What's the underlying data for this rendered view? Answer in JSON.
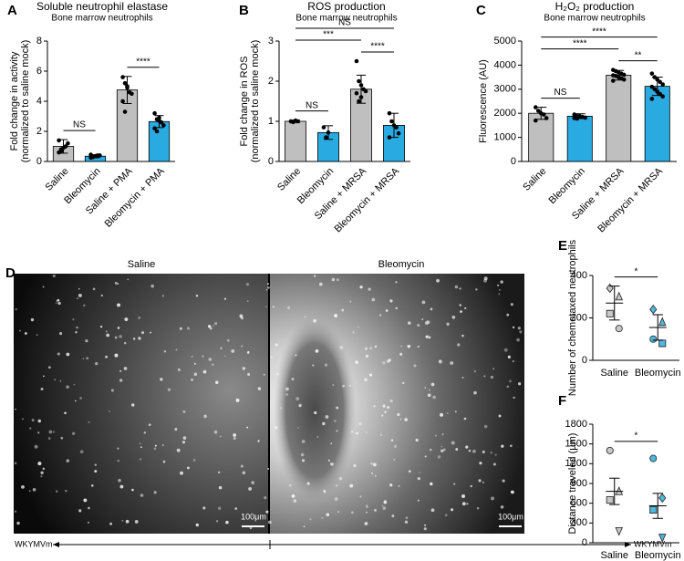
{
  "chart_data": [
    {
      "type": "bar",
      "label": "A",
      "title": "Soluble neutrophil elastase",
      "subtitle": "Bone marrow neutrophils",
      "ylabel": [
        "Fold change in activity",
        "(normalized to saline mock)"
      ],
      "categories": [
        "Saline",
        "Bleomycin",
        "Saline + PMA",
        "Bleomycin + PMA"
      ],
      "values": [
        1.0,
        0.35,
        4.75,
        2.65
      ],
      "errors": [
        0.45,
        0.1,
        0.9,
        0.4
      ],
      "points": [
        [
          0.6,
          0.7,
          0.9,
          1.0,
          1.2,
          1.4,
          0.8
        ],
        [
          0.25,
          0.3,
          0.35,
          0.4,
          0.4,
          0.45,
          0.3
        ],
        [
          5.6,
          5.2,
          4.9,
          4.6,
          4.5,
          4.0,
          3.3,
          5.0
        ],
        [
          3.2,
          2.8,
          2.7,
          2.6,
          2.4,
          2.2,
          2.0,
          2.9
        ]
      ],
      "colors": [
        "#bfbfbf",
        "#29abe2",
        "#bfbfbf",
        "#29abe2"
      ],
      "ylim": [
        0,
        8
      ],
      "yticks": [
        0,
        2,
        4,
        6,
        8
      ],
      "annotations": [
        {
          "text": "NS",
          "from": 0,
          "to": 1
        },
        {
          "text": "****",
          "from": 2,
          "to": 3
        }
      ]
    },
    {
      "type": "bar",
      "label": "B",
      "title": "ROS production",
      "subtitle": "Bone marrow neutrophils",
      "ylabel": [
        "Fold change in ROS",
        "(normalized to saline mock)"
      ],
      "categories": [
        "Saline",
        "Bleomycin",
        "Saline + MRSA",
        "Bleomycin + MRSA"
      ],
      "values": [
        1.0,
        0.72,
        1.8,
        0.9
      ],
      "errors": [
        0.03,
        0.17,
        0.35,
        0.3
      ],
      "points": [
        [
          1.0,
          0.98,
          1.02,
          1.0
        ],
        [
          0.85,
          0.6,
          0.72
        ],
        [
          2.5,
          2.0,
          1.9,
          1.8,
          1.75,
          1.7,
          1.5,
          1.6
        ],
        [
          1.2,
          1.0,
          0.9,
          0.85,
          0.7,
          0.6
        ]
      ],
      "colors": [
        "#bfbfbf",
        "#29abe2",
        "#bfbfbf",
        "#29abe2"
      ],
      "ylim": [
        0,
        3
      ],
      "yticks": [
        0,
        1,
        2,
        3
      ],
      "annotations": [
        {
          "text": "NS",
          "from": 0,
          "to": 1
        },
        {
          "text": "****",
          "from": 2,
          "to": 3
        },
        {
          "text": "***",
          "from": 0,
          "to": 2
        },
        {
          "text": "NS",
          "from": 0,
          "to": 3
        }
      ]
    },
    {
      "type": "bar",
      "label": "C",
      "title": "H₂O₂ production",
      "subtitle": "Bone marrow neutrophils",
      "ylabel": [
        "Fluorescence (AU)"
      ],
      "categories": [
        "Saline",
        "Bleomycin",
        "Saline + MRSA",
        "Bleomycin + MRSA"
      ],
      "values": [
        2000,
        1880,
        3580,
        3120
      ],
      "errors": [
        250,
        100,
        200,
        380
      ],
      "points": [
        [
          2250,
          2100,
          2000,
          1950,
          1800,
          1700
        ],
        [
          1950,
          1900,
          1880,
          1850,
          1820,
          1800,
          1780
        ],
        [
          3800,
          3750,
          3700,
          3650,
          3600,
          3580,
          3550,
          3500,
          3450,
          3400,
          3350
        ],
        [
          3650,
          3500,
          3400,
          3300,
          3200,
          3100,
          3000,
          2900,
          2800,
          2700,
          2600
        ]
      ],
      "colors": [
        "#bfbfbf",
        "#29abe2",
        "#bfbfbf",
        "#29abe2"
      ],
      "ylim": [
        0,
        5000
      ],
      "yticks": [
        0,
        1000,
        2000,
        3000,
        4000,
        5000
      ],
      "annotations": [
        {
          "text": "NS",
          "from": 0,
          "to": 1
        },
        {
          "text": "**",
          "from": 2,
          "to": 3
        },
        {
          "text": "****",
          "from": 0,
          "to": 2
        },
        {
          "text": "****",
          "from": 0,
          "to": 3
        }
      ]
    },
    {
      "type": "dotplot",
      "label": "E",
      "ylabel": [
        "Number of chemotaxed neutrophils"
      ],
      "categories": [
        "Saline",
        "Bleomycin"
      ],
      "values": [
        270,
        155
      ],
      "errors": [
        80,
        60
      ],
      "points": [
        [
          {
            "value": 340,
            "shape": "diamond"
          },
          {
            "value": 300,
            "shape": "triangle"
          },
          {
            "value": 220,
            "shape": "square"
          },
          {
            "value": 150,
            "shape": "circle"
          }
        ],
        [
          {
            "value": 240,
            "shape": "diamond"
          },
          {
            "value": 180,
            "shape": "triangle"
          },
          {
            "value": 100,
            "shape": "circle"
          },
          {
            "value": 80,
            "shape": "square"
          }
        ]
      ],
      "colors": [
        "#c8c8c8",
        "#4db8e0"
      ],
      "ylim": [
        0,
        400
      ],
      "yticks": [
        0,
        200,
        400
      ],
      "annotations": [
        {
          "text": "*",
          "from": 0,
          "to": 1
        }
      ]
    },
    {
      "type": "dotplot",
      "label": "F",
      "ylabel": [
        "Distance traveled (μm)"
      ],
      "categories": [
        "Saline",
        "Bleomycin"
      ],
      "values": [
        780,
        560
      ],
      "errors": [
        200,
        190
      ],
      "points": [
        [
          {
            "value": 1400,
            "shape": "circle"
          },
          {
            "value": 780,
            "shape": "triangle"
          },
          {
            "value": 650,
            "shape": "square"
          },
          {
            "value": 180,
            "shape": "triangle-down"
          }
        ],
        [
          {
            "value": 1280,
            "shape": "circle"
          },
          {
            "value": 680,
            "shape": "diamond"
          },
          {
            "value": 500,
            "shape": "square"
          },
          {
            "value": 80,
            "shape": "triangle-down"
          }
        ]
      ],
      "colors": [
        "#c8c8c8",
        "#4db8e0"
      ],
      "ylim": [
        0,
        1800
      ],
      "yticks": [
        0,
        300,
        600,
        900,
        1200,
        1500,
        1800
      ],
      "annotations": [
        {
          "text": "*",
          "from": 0,
          "to": 1
        }
      ]
    }
  ],
  "image_panel": {
    "label": "D",
    "left": "Saline",
    "right": "Bleomycin",
    "scale_bar": "100μm",
    "stimulus": "WKYMVm"
  }
}
